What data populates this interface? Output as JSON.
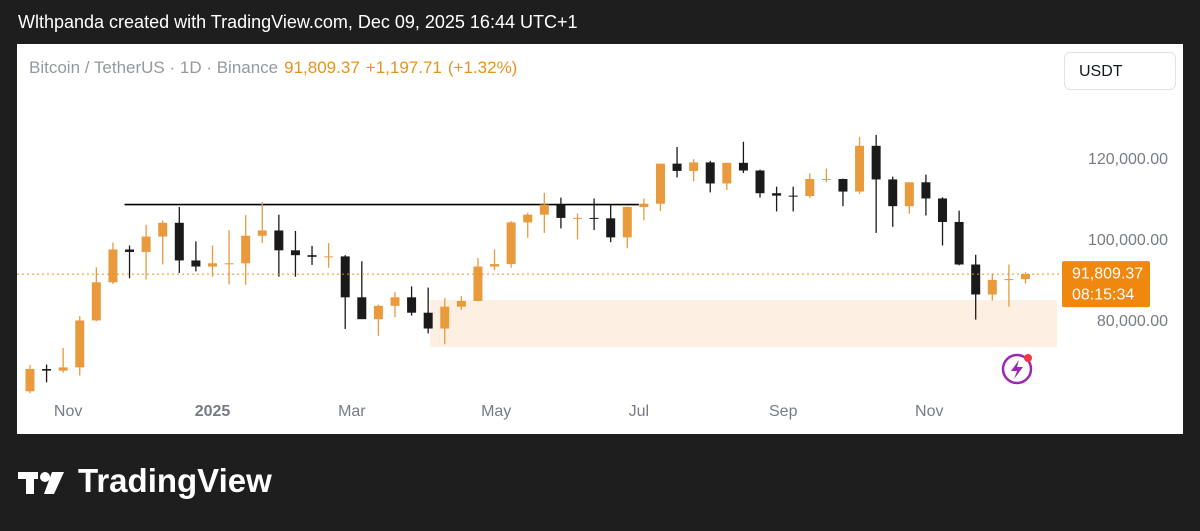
{
  "header": {
    "text": "Wlthpanda created with TradingView.com, Dec 09, 2025 16:44 UTC+1"
  },
  "footer": {
    "logo_text": "TradingView"
  },
  "chart_data": {
    "type": "candlestick",
    "title": "Bitcoin / TetherUS · 1D · Binance",
    "last_price": {
      "value": 91809.37,
      "label": "91,809.37"
    },
    "change": {
      "value": 1197.71,
      "label": "+1,197.71"
    },
    "change_pct": {
      "value": 1.32,
      "label": "(+1.32%)"
    },
    "countdown": "08:15:34",
    "currency": "USDT",
    "up_color": "#e89a3c",
    "down_color": "#1a1a1a",
    "open": [
      62900,
      68400,
      68000,
      68800,
      80400,
      89800,
      97900,
      97300,
      101100,
      104500,
      95200,
      93700,
      94500,
      94500,
      101300,
      102600,
      97700,
      96500,
      96100,
      96200,
      86100,
      80700,
      84000,
      86100,
      82300,
      78400,
      83800,
      85200,
      93700,
      94300,
      104600,
      106500,
      109000,
      105700,
      105700,
      105600,
      100900,
      108400,
      109200,
      119100,
      117300,
      119400,
      114200,
      119300,
      117400,
      111800,
      111200,
      111100,
      115300,
      115300,
      112200,
      123500,
      115200,
      108600,
      114500,
      110500,
      104700,
      94200,
      86800,
      90400,
      90600
    ],
    "high": [
      69400,
      69500,
      73600,
      81500,
      93500,
      99600,
      98900,
      104000,
      105000,
      108400,
      99900,
      98900,
      102700,
      106400,
      109600,
      106500,
      102500,
      98800,
      99500,
      96500,
      95000,
      84300,
      87400,
      88800,
      88500,
      85900,
      86400,
      95800,
      97900,
      104900,
      107000,
      111900,
      110700,
      106800,
      110500,
      108900,
      108500,
      110500,
      119000,
      123200,
      120200,
      119800,
      119300,
      124500,
      117600,
      113400,
      113400,
      116700,
      117900,
      115400,
      125700,
      126200,
      115900,
      114000,
      116400,
      110800,
      107500,
      96600,
      92000,
      94200,
      92300
    ],
    "low": [
      62400,
      65100,
      67500,
      66800,
      80200,
      89400,
      90800,
      90500,
      94200,
      92100,
      92500,
      91200,
      89300,
      89200,
      99500,
      91200,
      91200,
      94100,
      93400,
      78300,
      81500,
      76600,
      81200,
      81600,
      77200,
      74500,
      83000,
      85100,
      92800,
      93400,
      100800,
      102000,
      103100,
      100400,
      102700,
      99700,
      98200,
      105100,
      107400,
      115700,
      114700,
      112000,
      112600,
      116800,
      110700,
      107300,
      107300,
      110600,
      114500,
      108600,
      111600,
      102000,
      103500,
      106700,
      106300,
      98900,
      94000,
      80600,
      85300,
      83800,
      89500
    ],
    "close": [
      68400,
      68000,
      68800,
      80400,
      89800,
      97900,
      97300,
      101100,
      104500,
      95200,
      93700,
      94500,
      94500,
      101300,
      102600,
      97700,
      96500,
      96100,
      96200,
      86100,
      80700,
      84000,
      86100,
      82300,
      78400,
      83800,
      85200,
      93700,
      94300,
      104600,
      106500,
      109000,
      105700,
      105700,
      105600,
      100900,
      108400,
      109200,
      119100,
      117300,
      119400,
      114200,
      119300,
      117400,
      111800,
      111200,
      111100,
      115300,
      115300,
      112200,
      123500,
      115200,
      108600,
      114500,
      110500,
      104700,
      94200,
      86800,
      90400,
      90600,
      91809.37
    ],
    "resistance_line": {
      "value": 109000,
      "start": 5.7,
      "end": 36.7
    },
    "support_zone": {
      "low": 73800,
      "high": 85400,
      "start": 24.1,
      "end": 61.9
    },
    "xlim": [
      -0.3,
      61.9
    ],
    "xticks": [
      {
        "value": 2.3,
        "label": "Nov"
      },
      {
        "value": 11.0,
        "label": "2025"
      },
      {
        "value": 19.4,
        "label": "Mar"
      },
      {
        "value": 28.1,
        "label": "May"
      },
      {
        "value": 36.7,
        "label": "Jul"
      },
      {
        "value": 45.4,
        "label": "Sep"
      },
      {
        "value": 54.2,
        "label": "Nov"
      }
    ],
    "ylim": [
      61000,
      147000
    ],
    "yticks": [
      {
        "value": 80000,
        "label": "80,000.00"
      },
      {
        "value": 100000,
        "label": "100,000.00"
      },
      {
        "value": 120000,
        "label": "120,000.00"
      }
    ]
  }
}
